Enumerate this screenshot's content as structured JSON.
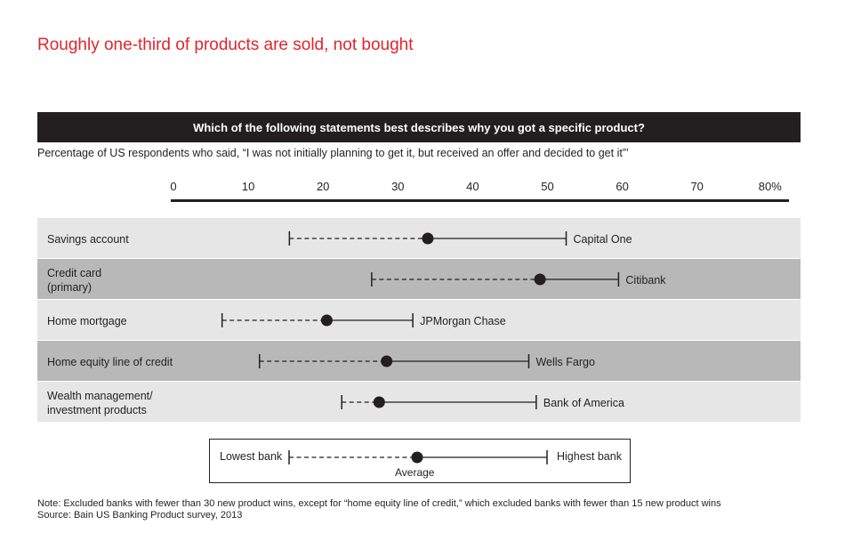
{
  "header": {
    "title": "Roughly one-third of products are sold, not bought",
    "question": "Which of the following statements best describes why you got a specific product?",
    "subtitle": "Percentage of US respondents who said, “I was not initially planning to get it, but received an offer and decided to get it”’"
  },
  "chart_data": {
    "type": "range-dot",
    "axis": {
      "ticks": [
        0,
        10,
        20,
        30,
        40,
        50,
        60,
        70,
        80
      ],
      "tick_labels": [
        "0",
        "10",
        "20",
        "30",
        "40",
        "50",
        "60",
        "70",
        "80%"
      ],
      "range": [
        0,
        80
      ]
    },
    "rows": [
      {
        "label": [
          "Savings account"
        ],
        "low": 15.5,
        "avg": 34,
        "high": 52.5,
        "bank": "Capital One"
      },
      {
        "label": [
          "Credit card",
          "(primary)"
        ],
        "low": 26.5,
        "avg": 49,
        "high": 59.5,
        "bank": "Citibank"
      },
      {
        "label": [
          "Home mortgage"
        ],
        "low": 6.5,
        "avg": 20.5,
        "high": 32,
        "bank": "JPMorgan Chase"
      },
      {
        "label": [
          "Home equity line of credit"
        ],
        "low": 11.5,
        "avg": 28.5,
        "high": 47.5,
        "bank": "Wells Fargo"
      },
      {
        "label": [
          "Wealth management/",
          "investment products"
        ],
        "low": 22.5,
        "avg": 27.5,
        "high": 48.5,
        "bank": "Bank of America"
      }
    ],
    "colors": {
      "row_light": "#e6e6e6",
      "row_dark": "#b8b8b8",
      "title_red": "#e3242b",
      "ink": "#231f20"
    }
  },
  "legend": {
    "low": "Lowest bank",
    "avg": "Average",
    "high": "Highest bank"
  },
  "footer": {
    "note": "Note: Excluded banks with fewer than 30 new product wins, except for “home equity line of credit,” which excluded banks with fewer than 15 new product wins",
    "source": "Source: Bain US Banking Product survey, 2013"
  }
}
